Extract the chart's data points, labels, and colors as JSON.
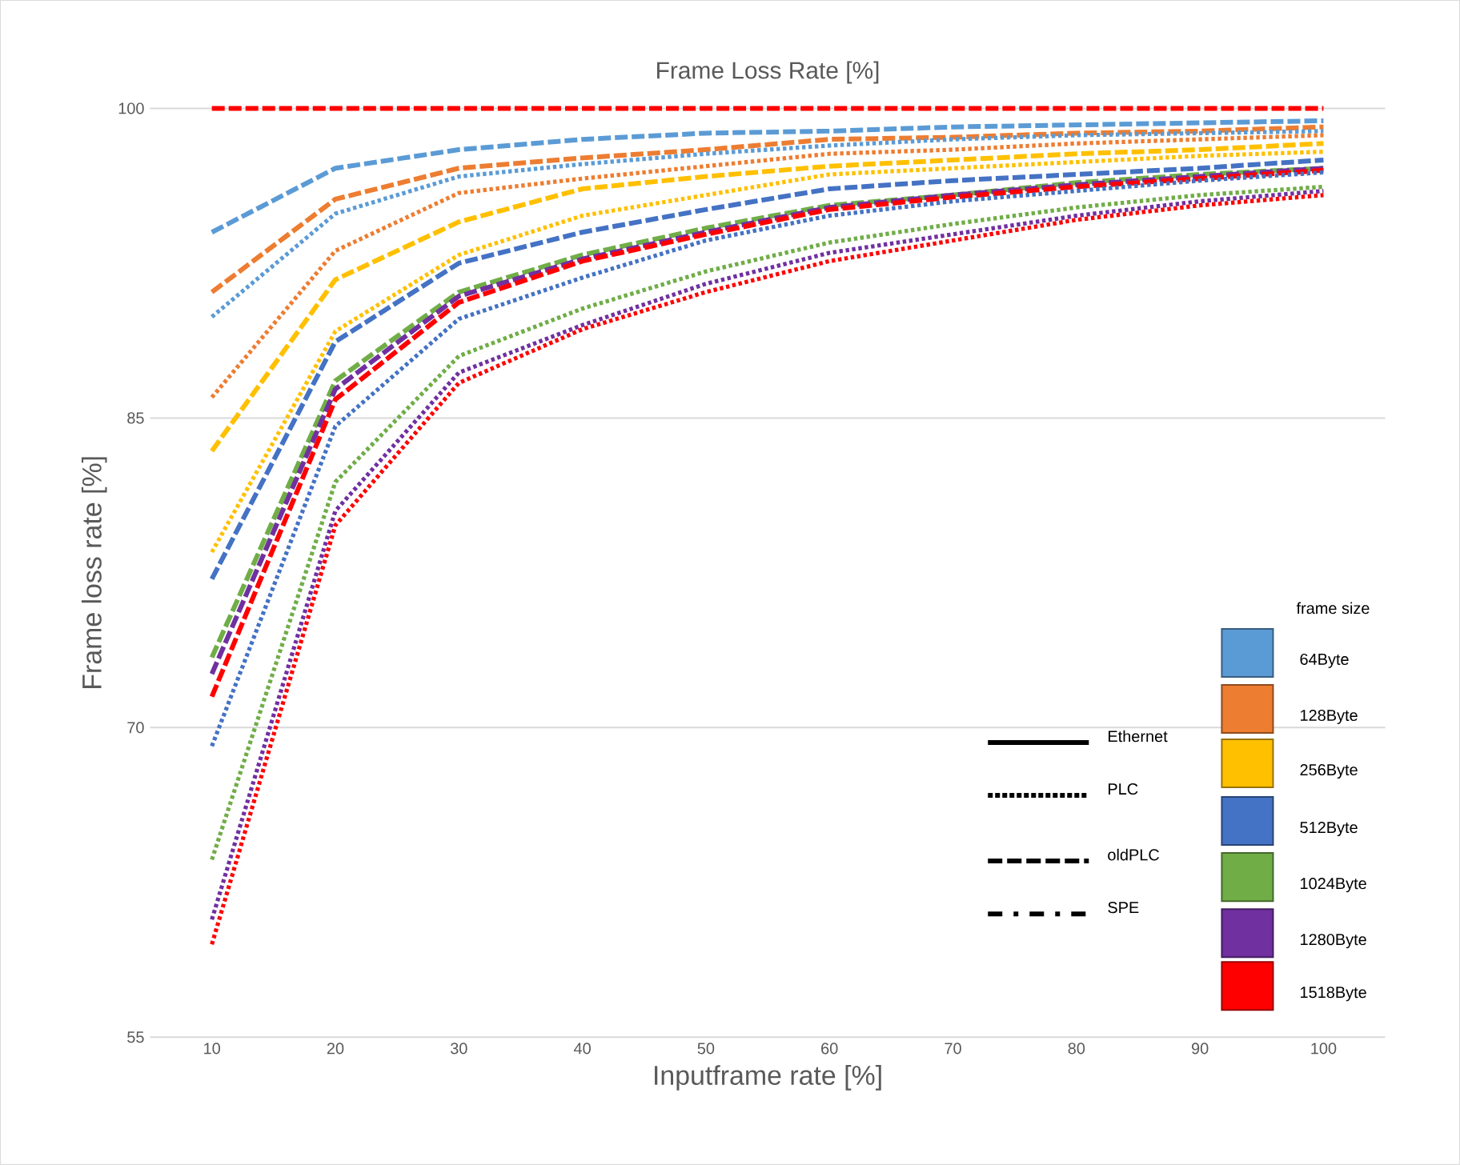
{
  "chart_data": {
    "type": "line",
    "title": "Frame Loss Rate [%]",
    "xlabel": "Inputframe rate [%]",
    "ylabel": "Frame loss rate [%]",
    "legend_title": "frame size",
    "categories": [
      "10",
      "20",
      "30",
      "40",
      "50",
      "60",
      "70",
      "80",
      "90",
      "100"
    ],
    "ylim": [
      55,
      100
    ],
    "yticks": [
      55,
      70,
      85,
      100
    ],
    "grid": "y",
    "annotations": [
      "Ethernet",
      "PLC",
      "oldPLC",
      "SPE",
      "64Byte",
      "128Byte",
      "256Byte",
      "512Byte",
      "1024Byte",
      "1280Byte",
      "1518Byte"
    ],
    "series": [
      {
        "color": "#5b9bd5",
        "line_style": "dashed",
        "values": [
          94.0,
          97.1,
          98.0,
          98.5,
          98.8,
          98.9,
          99.1,
          99.2,
          99.3,
          99.4
        ]
      },
      {
        "color": "#ed7d31",
        "line_style": "dashed",
        "values": [
          91.1,
          95.6,
          97.1,
          97.6,
          98.0,
          98.5,
          98.6,
          98.8,
          98.9,
          99.1
        ]
      },
      {
        "color": "#ffc000",
        "line_style": "dashed",
        "values": [
          83.4,
          91.7,
          94.5,
          96.1,
          96.7,
          97.2,
          97.5,
          97.8,
          98.0,
          98.3
        ]
      },
      {
        "color": "#4472c4",
        "line_style": "dashed",
        "values": [
          77.2,
          88.7,
          92.5,
          94.0,
          95.1,
          96.1,
          96.5,
          96.8,
          97.1,
          97.5
        ]
      },
      {
        "color": "#70ad47",
        "line_style": "dashed",
        "values": [
          73.4,
          86.8,
          91.1,
          92.9,
          94.2,
          95.3,
          95.8,
          96.4,
          96.8,
          97.1
        ]
      },
      {
        "color": "#7030a0",
        "line_style": "dashed",
        "values": [
          72.6,
          86.4,
          90.9,
          92.7,
          94.0,
          95.2,
          95.8,
          96.3,
          96.7,
          97.1
        ]
      },
      {
        "color": "#ff0000",
        "line_style": "dashed",
        "values": [
          71.5,
          85.9,
          90.6,
          92.6,
          93.9,
          95.1,
          95.7,
          96.2,
          96.6,
          97.0
        ]
      },
      {
        "color": "#5b9bd5",
        "line_style": "dotted",
        "values": [
          89.9,
          94.9,
          96.7,
          97.3,
          97.8,
          98.2,
          98.5,
          98.7,
          98.8,
          98.9
        ]
      },
      {
        "color": "#ed7d31",
        "line_style": "dotted",
        "values": [
          86.0,
          93.1,
          95.9,
          96.6,
          97.2,
          97.8,
          98.0,
          98.3,
          98.5,
          98.7
        ]
      },
      {
        "color": "#ffc000",
        "line_style": "dotted",
        "values": [
          78.5,
          89.2,
          92.9,
          94.8,
          95.8,
          96.8,
          97.1,
          97.4,
          97.7,
          97.9
        ]
      },
      {
        "color": "#4472c4",
        "line_style": "dotted",
        "values": [
          69.1,
          84.6,
          89.8,
          91.8,
          93.6,
          94.8,
          95.5,
          96.0,
          96.5,
          96.9
        ]
      },
      {
        "color": "#70ad47",
        "line_style": "dotted",
        "values": [
          63.6,
          81.9,
          88.0,
          90.3,
          92.1,
          93.5,
          94.4,
          95.2,
          95.8,
          96.2
        ]
      },
      {
        "color": "#7030a0",
        "line_style": "dotted",
        "values": [
          60.7,
          80.5,
          87.2,
          89.5,
          91.5,
          93.0,
          93.9,
          94.8,
          95.5,
          96.0
        ]
      },
      {
        "color": "#ff0000",
        "line_style": "dotted",
        "values": [
          59.5,
          79.8,
          86.7,
          89.3,
          91.1,
          92.6,
          93.6,
          94.6,
          95.3,
          95.8
        ]
      },
      {
        "color": "#ff0000",
        "line_style": "dashed",
        "values": [
          100,
          100,
          100,
          100,
          100,
          100,
          100,
          100,
          100,
          100
        ]
      }
    ]
  }
}
